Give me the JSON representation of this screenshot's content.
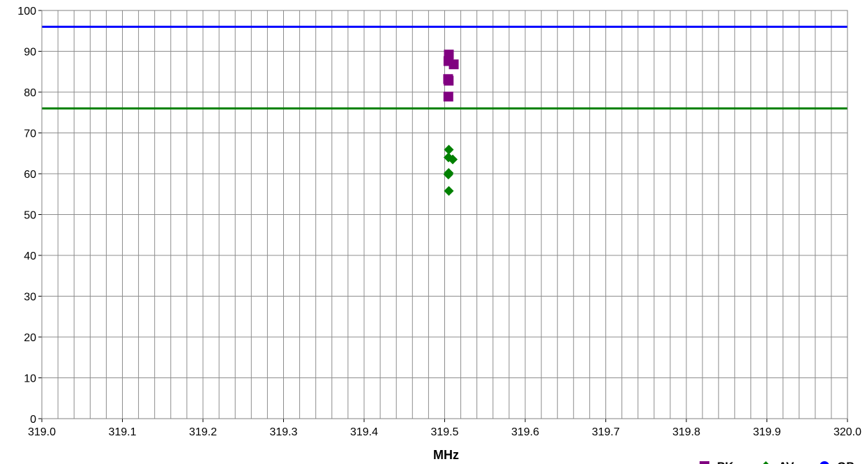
{
  "chart_data": {
    "type": "scatter",
    "title": "",
    "xlabel": "MHz",
    "ylabel": "",
    "xlim": [
      319.0,
      320.0
    ],
    "ylim": [
      0,
      100
    ],
    "x_ticks": [
      "319.0",
      "319.1",
      "319.2",
      "319.3",
      "319.4",
      "319.5",
      "319.6",
      "319.7",
      "319.8",
      "319.9",
      "320.0"
    ],
    "y_ticks": [
      "0",
      "10",
      "20",
      "30",
      "40",
      "50",
      "60",
      "70",
      "80",
      "90",
      "100"
    ],
    "grid": true,
    "legend_placement": "bottom-right",
    "series": [
      {
        "name": "PK",
        "marker": "square",
        "color": "#800080",
        "points": [
          [
            319.5052,
            89.2
          ],
          [
            319.5047,
            87.6
          ],
          [
            319.5113,
            86.8
          ],
          [
            319.5043,
            83.2
          ],
          [
            319.505,
            82.8
          ],
          [
            319.5046,
            78.9
          ]
        ]
      },
      {
        "name": "AV",
        "marker": "diamond",
        "color": "#008000",
        "points": [
          [
            319.5052,
            65.9
          ],
          [
            319.5047,
            64.0
          ],
          [
            319.51,
            63.5
          ],
          [
            319.505,
            60.2
          ],
          [
            319.5046,
            59.8
          ],
          [
            319.5052,
            55.8
          ]
        ]
      },
      {
        "name": "QP",
        "marker": "circle",
        "color": "#0000ff",
        "points": []
      }
    ],
    "limit_lines": [
      {
        "y": 96,
        "color": "#0000ff"
      },
      {
        "y": 76,
        "color": "#008000"
      }
    ]
  }
}
